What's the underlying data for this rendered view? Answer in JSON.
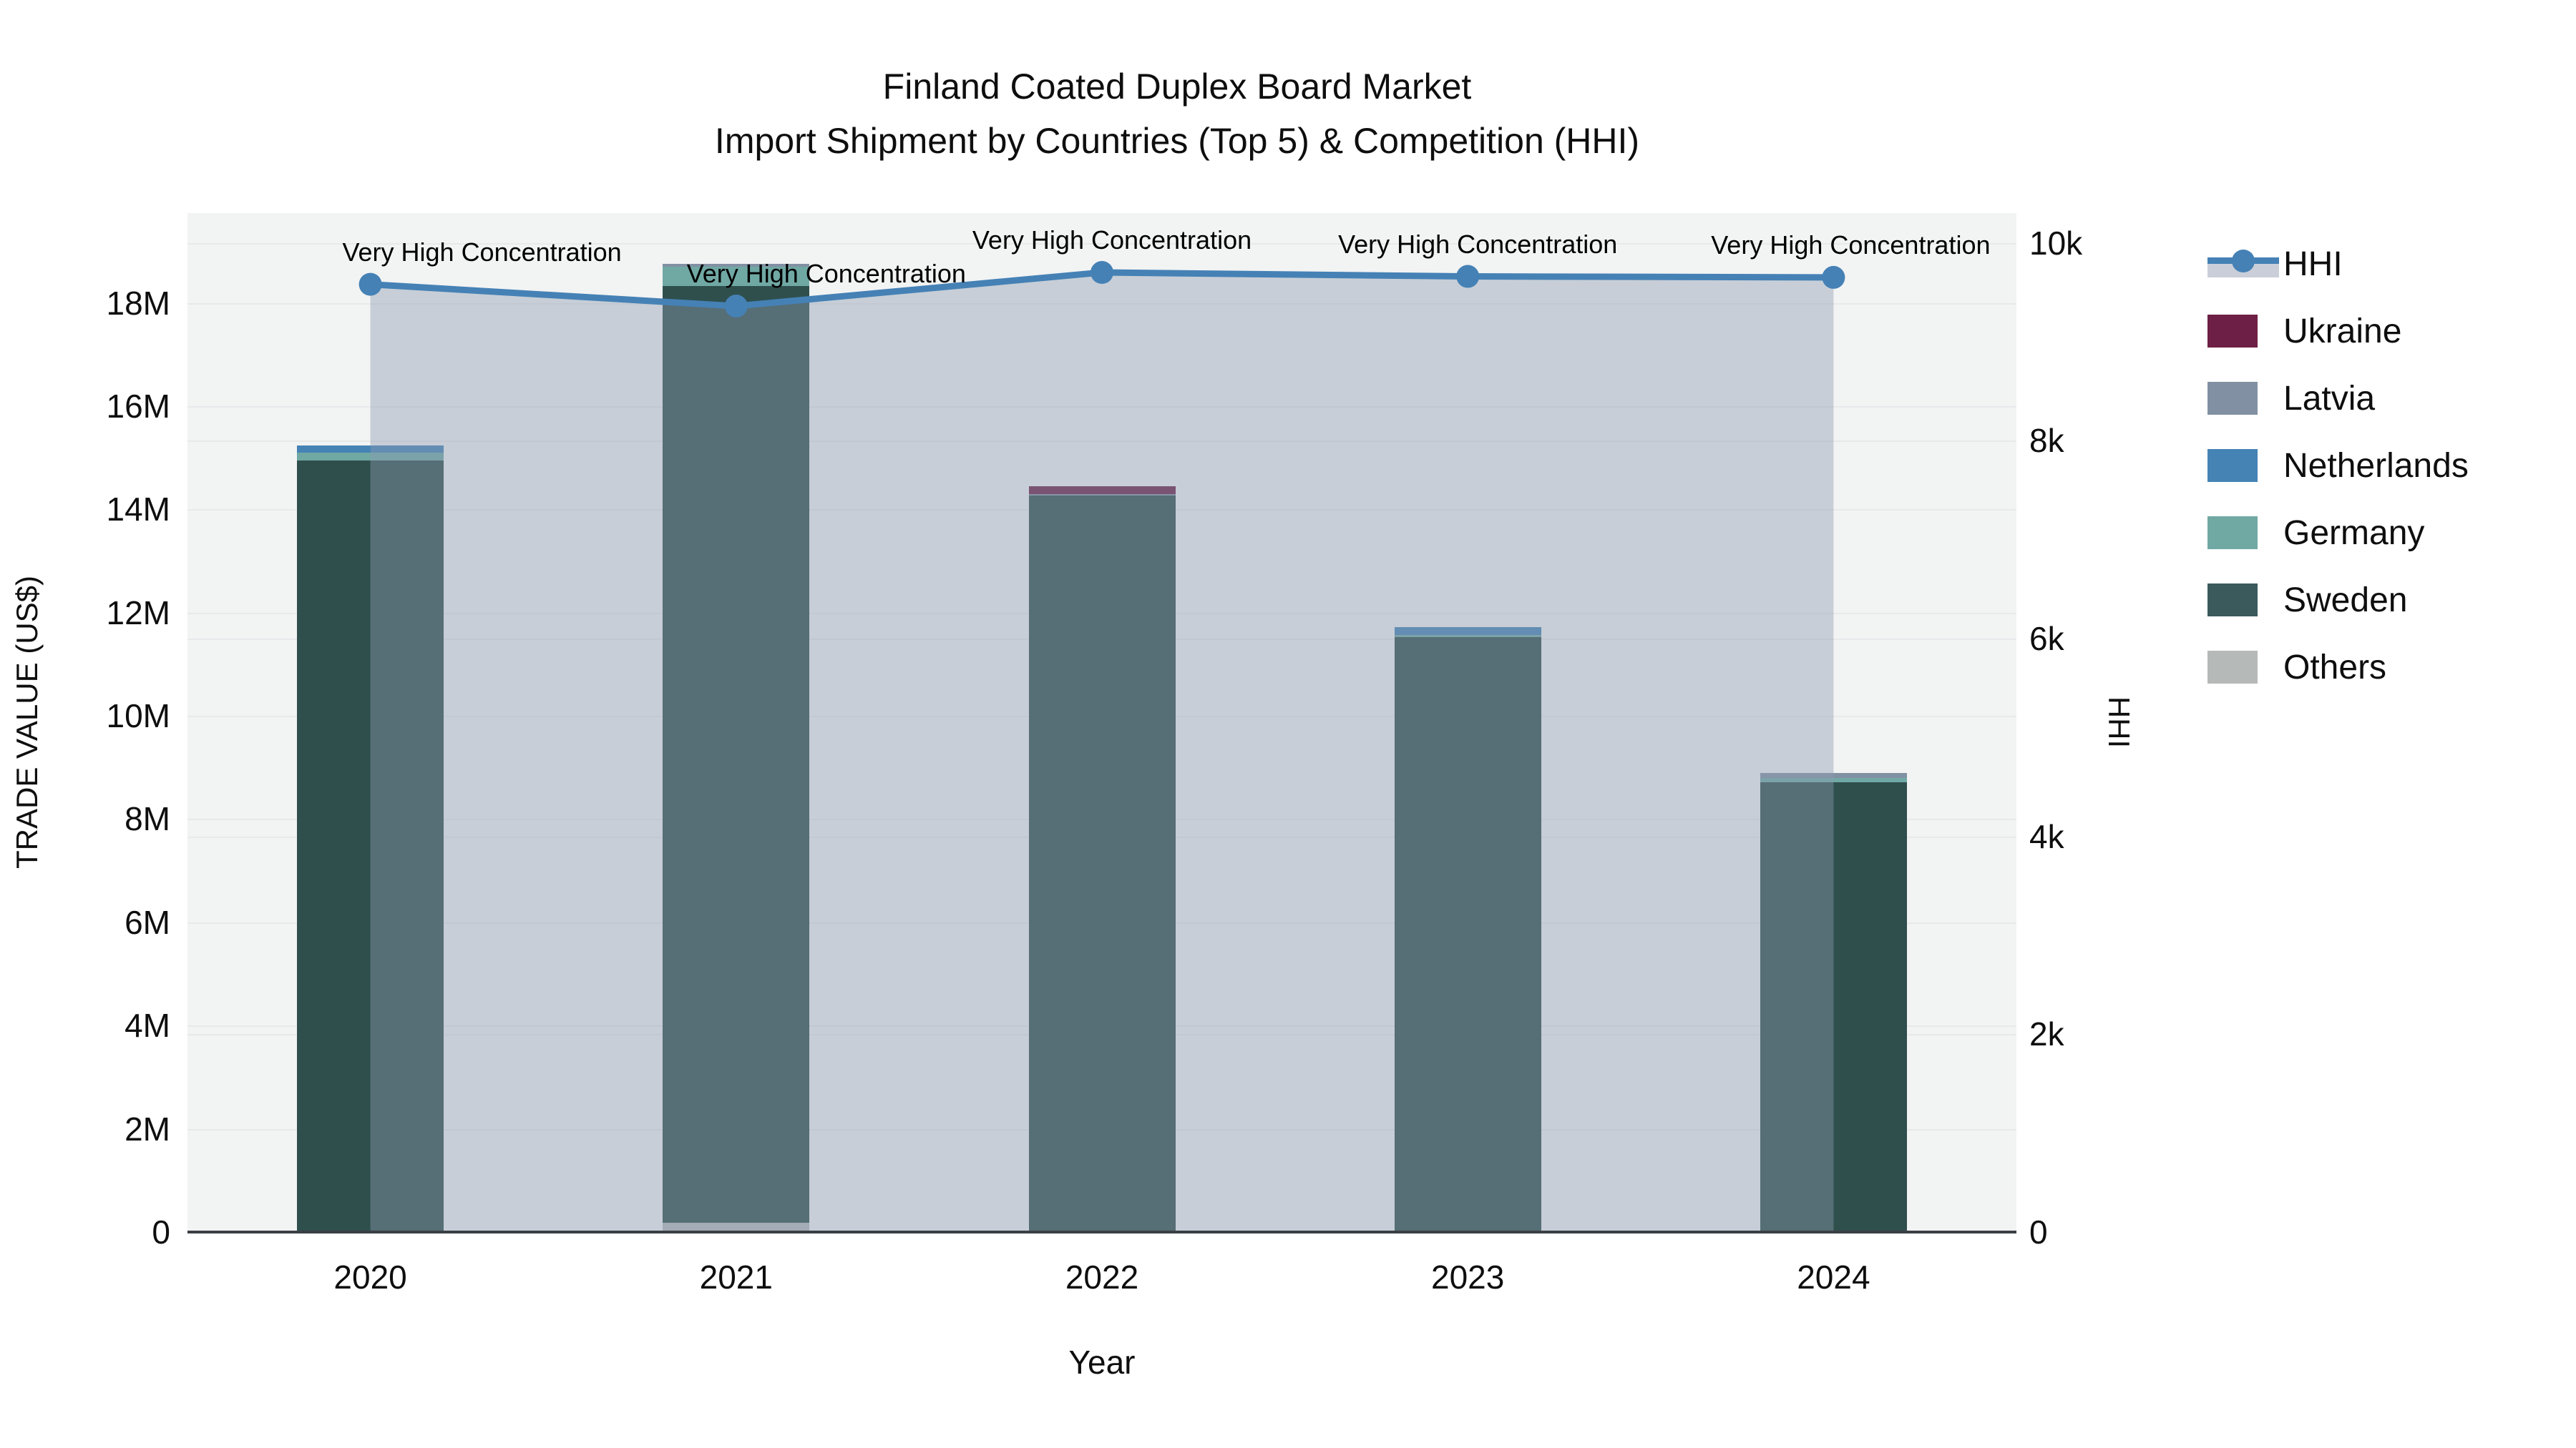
{
  "title": {
    "line1": "Finland Coated Duplex Board Market",
    "line2": "Import Shipment by Countries (Top 5) & Competition (HHI)"
  },
  "chart_data": {
    "type": "bar+line",
    "categories": [
      "2020",
      "2021",
      "2022",
      "2023",
      "2024"
    ],
    "stack_series_bottom_to_top": [
      {
        "name": "Others",
        "color": "#b5b9b8",
        "values": [
          0,
          180000,
          0,
          0,
          0
        ]
      },
      {
        "name": "Sweden",
        "color": "#2f4f4d",
        "values": [
          14950000,
          18150000,
          14270000,
          11530000,
          8720000
        ]
      },
      {
        "name": "Germany",
        "color": "#70a8a4",
        "values": [
          150000,
          370000,
          0,
          40000,
          70000
        ]
      },
      {
        "name": "Netherlands",
        "color": "#4583b5",
        "values": [
          140000,
          0,
          0,
          150000,
          0
        ]
      },
      {
        "name": "Latvia",
        "color": "#8191a3",
        "values": [
          0,
          60000,
          30000,
          0,
          100000
        ]
      },
      {
        "name": "Ukraine",
        "color": "#6d1f45",
        "values": [
          0,
          0,
          150000,
          0,
          0
        ]
      }
    ],
    "line_series": {
      "name": "HHI",
      "color": "#4581b5",
      "band_color": "rgba(140,155,176,0.42)",
      "values": [
        9580,
        9360,
        9700,
        9660,
        9650
      ]
    },
    "annotations": [
      "Very High Concentration",
      "Very High Concentration",
      "Very High Concentration",
      "Very High Concentration",
      "Very High Concentration"
    ],
    "xlabel": "Year",
    "ylabel": "TRADE VALUE (US$)",
    "y2label": "HHI",
    "yticks": [
      {
        "label": "0",
        "value": 0
      },
      {
        "label": "2M",
        "value": 2000000
      },
      {
        "label": "4M",
        "value": 4000000
      },
      {
        "label": "6M",
        "value": 6000000
      },
      {
        "label": "8M",
        "value": 8000000
      },
      {
        "label": "10M",
        "value": 10000000
      },
      {
        "label": "12M",
        "value": 12000000
      },
      {
        "label": "14M",
        "value": 14000000
      },
      {
        "label": "16M",
        "value": 16000000
      },
      {
        "label": "18M",
        "value": 18000000
      }
    ],
    "y2ticks": [
      {
        "label": "0",
        "value": 0
      },
      {
        "label": "2k",
        "value": 2000
      },
      {
        "label": "4k",
        "value": 4000
      },
      {
        "label": "6k",
        "value": 6000
      },
      {
        "label": "8k",
        "value": 8000
      },
      {
        "label": "10k",
        "value": 10000
      }
    ],
    "ylim": [
      0,
      19740000
    ],
    "y2lim": [
      0,
      10300
    ],
    "grid": true,
    "legend_position": "right",
    "legend": [
      {
        "label": "HHI",
        "type": "line-band",
        "color": "#4581b5"
      },
      {
        "label": "Ukraine",
        "type": "swatch",
        "color": "#6d1f45"
      },
      {
        "label": "Latvia",
        "type": "swatch",
        "color": "#8191a3"
      },
      {
        "label": "Netherlands",
        "type": "swatch",
        "color": "#4583b5"
      },
      {
        "label": "Germany",
        "type": "swatch",
        "color": "#70a8a4"
      },
      {
        "label": "Sweden",
        "type": "swatch",
        "color": "#3a5a5c"
      },
      {
        "label": "Others",
        "type": "swatch",
        "color": "#b5b9b8"
      }
    ],
    "colors": {
      "plot_background": "#f2f3f3",
      "page_background": "#ffffff",
      "gridline": "#e7e9ea",
      "axis_line": "#3a3f44",
      "text": "#0e0e0e"
    }
  }
}
